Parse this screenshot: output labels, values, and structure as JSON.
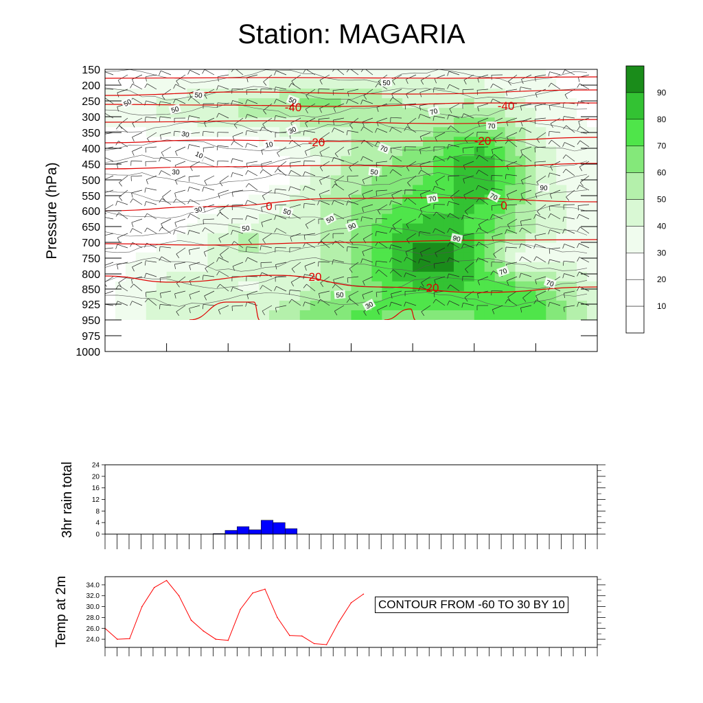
{
  "title": "Station: MAGARIA",
  "colors": {
    "rh_levels": [
      "#ffffff",
      "#ffffff",
      "#ffffff",
      "#f0fcee",
      "#d9f8d4",
      "#b4f0ab",
      "#84e87a",
      "#4fe54a",
      "#33c233",
      "#1a8c1a"
    ],
    "temperature_contour": "#e00000",
    "rain_bar": "#0000ff",
    "temp_line": "#ff0000"
  },
  "chart_data": [
    {
      "type": "heatmap",
      "description_type": "time-height cross section (relative humidity fill, temperature contours, wind barbs)",
      "ylabel": "Pressure (hPa)",
      "y_tick_labels": [
        "150",
        "200",
        "250",
        "300",
        "350",
        "400",
        "450",
        "500",
        "550",
        "600",
        "650",
        "700",
        "750",
        "800",
        "850",
        "925",
        "950",
        "975",
        "1000"
      ],
      "y_reversed": true,
      "x_tick_count": 8,
      "colorbar": {
        "levels": [
          10,
          20,
          30,
          40,
          50,
          60,
          70,
          80,
          90
        ],
        "labels": [
          "10",
          "20",
          "30",
          "40",
          "50",
          "60",
          "70",
          "80",
          "90"
        ]
      },
      "temperature_contour_labels": [
        "-40",
        "-40",
        "-20",
        "-20",
        "0",
        "0",
        "20",
        "20"
      ],
      "rh_contour_labels": [
        "50",
        "50",
        "50",
        "50",
        "50",
        "30",
        "30",
        "10",
        "10",
        "30",
        "30",
        "50",
        "50",
        "50",
        "50",
        "70",
        "70",
        "70",
        "90",
        "90",
        "70",
        "70",
        "90",
        "70",
        "70",
        "50",
        "30"
      ]
    },
    {
      "type": "bar",
      "ylabel": "3hr rain total",
      "y_tick_labels": [
        "0",
        "4",
        "8",
        "12",
        "16",
        "20",
        "24"
      ],
      "ylim": [
        0,
        24
      ],
      "x_index_count": 41,
      "bars": [
        {
          "i": 9,
          "value": 0.2
        },
        {
          "i": 10,
          "value": 1.3
        },
        {
          "i": 11,
          "value": 2.6
        },
        {
          "i": 12,
          "value": 1.5
        },
        {
          "i": 13,
          "value": 4.8
        },
        {
          "i": 14,
          "value": 4.0
        },
        {
          "i": 15,
          "value": 1.9
        }
      ]
    },
    {
      "type": "line",
      "ylabel": "Temp at 2m",
      "y_tick_labels": [
        "24.0",
        "26.0",
        "28.0",
        "30.0",
        "32.0",
        "34.0"
      ],
      "ylim": [
        22.5,
        35.5
      ],
      "x_index_count": 41,
      "values": [
        26.0,
        24.0,
        24.1,
        30.0,
        33.5,
        34.8,
        32.0,
        27.5,
        25.5,
        24.0,
        23.8,
        29.5,
        32.5,
        33.2,
        28.0,
        24.7,
        24.6,
        23.2,
        23.0,
        27.2,
        30.7,
        32.3
      ]
    }
  ],
  "annotation": "CONTOUR FROM -60 TO 30 BY 10"
}
